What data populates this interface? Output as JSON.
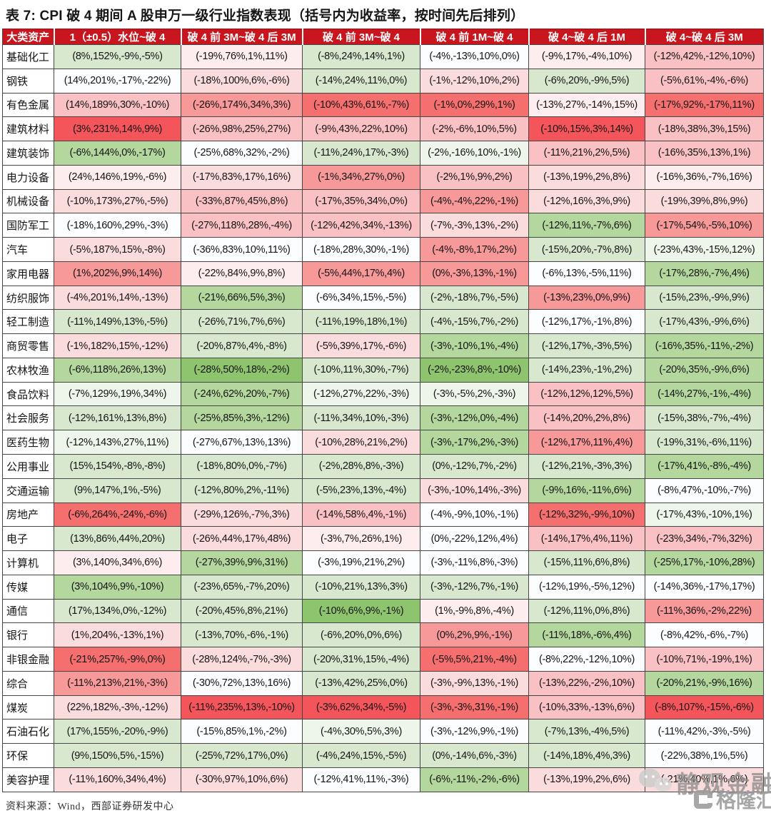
{
  "title": "表 7: CPI 破 4 期间 A 股申万一级行业指数表现（括号内为收益率，按时间先后排列）",
  "footer": {
    "source": "资料来源：Wind，西部证券研发中心"
  },
  "watermark": {
    "wechat_text": "静观金融",
    "logo_text": "格隆汇"
  },
  "palette": {
    "r4": "#f4555b",
    "r3": "#f56f6f",
    "r2": "#f79899",
    "r1": "#f9c1c3",
    "p2": "#fbdcdd",
    "p1": "#fdedee",
    "w": "#fcfdfe",
    "g0": "#eef5ea",
    "g1": "#d8e8cf",
    "g2": "#b4d79d",
    "g3": "#8fc46f",
    "header": "#c9151e"
  },
  "table": {
    "columns": [
      "大类资产",
      "1（±0.5）水位~破 4",
      "破 4 前 3M~破 4 后 3M",
      "破 4 前 3M~破 4",
      "破 4 前 1M~破 4",
      "破 4~破 4 后 1M",
      "破 4~破 4 后 3M"
    ],
    "rows": [
      {
        "name": "基础化工",
        "cells": [
          [
            "(8%,152%,-9%,-5%)",
            "g1"
          ],
          [
            "(-19%,76%,1%,11%)",
            "p1"
          ],
          [
            "(-8%,24%,14%,1%)",
            "g1"
          ],
          [
            "(-4%,-13%,10%,0%)",
            "w"
          ],
          [
            "(-9%,17%,-4%,10%)",
            "p1"
          ],
          [
            "(-12%,42%,-12%,10%)",
            "r1"
          ]
        ]
      },
      {
        "name": "钢铁",
        "cells": [
          [
            "(14%,201%,-17%,-22%)",
            "w"
          ],
          [
            "(-18%,100%,6%,-6%)",
            "p2"
          ],
          [
            "(-14%,24%,11%,0%)",
            "g1"
          ],
          [
            "(-1%,-12%,10%,2%)",
            "p2"
          ],
          [
            "(-6%,20%,-9%,5%)",
            "g1"
          ],
          [
            "(-5%,61%,-4%,-6%)",
            "r1"
          ]
        ]
      },
      {
        "name": "有色金属",
        "cells": [
          [
            "(14%,189%,30%,-10%)",
            "r1"
          ],
          [
            "(-26%,174%,34%,3%)",
            "r2"
          ],
          [
            "(-10%,43%,61%,-7%)",
            "r3"
          ],
          [
            "(-1%,0%,29%,1%)",
            "r3"
          ],
          [
            "(-13%,27%,-14%,15%)",
            "p1"
          ],
          [
            "(-17%,92%,-17%,11%)",
            "r3"
          ]
        ]
      },
      {
        "name": "建筑材料",
        "cells": [
          [
            "(3%,231%,14%,9%)",
            "r4"
          ],
          [
            "(-26%,98%,25%,27%)",
            "r1"
          ],
          [
            "(-9%,43%,22%,10%)",
            "r1"
          ],
          [
            "(-2%,-6%,10%,5%)",
            "r1"
          ],
          [
            "(-10%,15%,3%,14%)",
            "r4"
          ],
          [
            "(-18%,38%,3%,15%)",
            "r1"
          ]
        ]
      },
      {
        "name": "建筑装饰",
        "cells": [
          [
            "(-6%,144%,0%,-17%)",
            "g2"
          ],
          [
            "(-25%,68%,32%,-2%)",
            "w"
          ],
          [
            "(-11%,24%,17%,-3%)",
            "g1"
          ],
          [
            "(-2%,-16%,10%,-1%)",
            "g0"
          ],
          [
            "(-11%,21%,2%,5%)",
            "r1"
          ],
          [
            "(-16%,35%,13%,1%)",
            "r1"
          ]
        ]
      },
      {
        "name": "电力设备",
        "cells": [
          [
            "(24%,146%,19%,-6%)",
            "p1"
          ],
          [
            "(-17%,83%,17%,16%)",
            "p2"
          ],
          [
            "(-1%,34%,27%,0%)",
            "r2"
          ],
          [
            "(-2%,1%,9%,2%)",
            "r1"
          ],
          [
            "(-13%,19%,2%,8%)",
            "p2"
          ],
          [
            "(-16%,36%,-7%,16%)",
            "p1"
          ]
        ]
      },
      {
        "name": "机械设备",
        "cells": [
          [
            "(-10%,173%,27%,-5%)",
            "p2"
          ],
          [
            "(-33%,87%,45%,8%)",
            "r1"
          ],
          [
            "(-17%,35%,34%,0%)",
            "r1"
          ],
          [
            "(-4%,-4%,22%,-1%)",
            "r2"
          ],
          [
            "(-12%,16%,3%,9%)",
            "p2"
          ],
          [
            "(-19%,39%,8%,9%)",
            "p2"
          ]
        ]
      },
      {
        "name": "国防军工",
        "cells": [
          [
            "(-18%,160%,29%,-3%)",
            "w"
          ],
          [
            "(-27%,118%,28%,-4%)",
            "r1"
          ],
          [
            "(-12%,42%,34%,-13%)",
            "r1"
          ],
          [
            "(-7%,-3%,13%,-2%)",
            "p2"
          ],
          [
            "(-12%,11%,-7%,6%)",
            "g2"
          ],
          [
            "(-17%,54%,-5%,10%)",
            "r2"
          ]
        ]
      },
      {
        "name": "汽车",
        "cells": [
          [
            "(-5%,187%,15%,-8%)",
            "p2"
          ],
          [
            "(-36%,83%,10%,11%)",
            "w"
          ],
          [
            "(-18%,28%,30%,-1%)",
            "w"
          ],
          [
            "(-4%,-8%,17%,2%)",
            "r2"
          ],
          [
            "(-15%,20%,-7%,8%)",
            "g1"
          ],
          [
            "(-23%,43%,-15%,12%)",
            "g0"
          ]
        ]
      },
      {
        "name": "家用电器",
        "cells": [
          [
            "(1%,202%,9%,14%)",
            "r2"
          ],
          [
            "(-22%,84%,9%,8%)",
            "p1"
          ],
          [
            "(-5%,44%,17%,4%)",
            "r2"
          ],
          [
            "(0%,-3%,13%,-1%)",
            "r2"
          ],
          [
            "(-6%,13%,-5%,11%)",
            "w"
          ],
          [
            "(-17%,28%,-7%,4%)",
            "g2"
          ]
        ]
      },
      {
        "name": "纺织服饰",
        "cells": [
          [
            "(-4%,201%,14%,-13%)",
            "p2"
          ],
          [
            "(-21%,66%,5%,3%)",
            "g2"
          ],
          [
            "(-6%,34%,15%,-5%)",
            "w"
          ],
          [
            "(-2%,-18%,7%,-5%)",
            "g1"
          ],
          [
            "(-13%,23%,0%,9%)",
            "r2"
          ],
          [
            "(-15%,23%,-9%,9%)",
            "g1"
          ]
        ]
      },
      {
        "name": "轻工制造",
        "cells": [
          [
            "(-11%,149%,13%,-5%)",
            "g1"
          ],
          [
            "(-26%,71%,7%,6%)",
            "g1"
          ],
          [
            "(-11%,19%,18%,1%)",
            "g1"
          ],
          [
            "(-4%,-15%,7%,-2%)",
            "g1"
          ],
          [
            "(-12%,17%,-1%,8%)",
            "w"
          ],
          [
            "(-17%,43%,-9%,6%)",
            "g1"
          ]
        ]
      },
      {
        "name": "商贸零售",
        "cells": [
          [
            "(-1%,182%,15%,-12%)",
            "p2"
          ],
          [
            "(-20%,87%,4%,-8%)",
            "g1"
          ],
          [
            "(-5%,39%,17%,-6%)",
            "p2"
          ],
          [
            "(-3%,-10%,1%,-4%)",
            "g2"
          ],
          [
            "(-12%,17%,-3%,5%)",
            "g1"
          ],
          [
            "(-16%,35%,-11%,-2%)",
            "g2"
          ]
        ]
      },
      {
        "name": "农林牧渔",
        "cells": [
          [
            "(-6%,118%,26%,13%)",
            "g2"
          ],
          [
            "(-28%,50%,18%,-2%)",
            "g3"
          ],
          [
            "(-10%,11%,30%,-7%)",
            "g1"
          ],
          [
            "(-2%,-23%,8%,-10%)",
            "g3"
          ],
          [
            "(-14%,23%,-1%,2%)",
            "g1"
          ],
          [
            "(-20%,35%,-9%,6%)",
            "g2"
          ]
        ]
      },
      {
        "name": "食品饮料",
        "cells": [
          [
            "(-7%,129%,19%,34%)",
            "g0"
          ],
          [
            "(-24%,62%,20%,-7%)",
            "g2"
          ],
          [
            "(-12%,27%,22%,-3%)",
            "g0"
          ],
          [
            "(-3%,-5%,2%,-3%)",
            "g0"
          ],
          [
            "(-12%,12%,12%,5%)",
            "r1"
          ],
          [
            "(-14%,27%,-1%,-4%)",
            "g2"
          ]
        ]
      },
      {
        "name": "社会服务",
        "cells": [
          [
            "(-12%,161%,13%,8%)",
            "g1"
          ],
          [
            "(-25%,85%,3%,-12%)",
            "g2"
          ],
          [
            "(-11%,34%,10%,-3%)",
            "g1"
          ],
          [
            "(-3%,-12%,0%,-4%)",
            "g2"
          ],
          [
            "(-14%,20%,2%,8%)",
            "r1"
          ],
          [
            "(-15%,38%,-7%,-4%)",
            "g1"
          ]
        ]
      },
      {
        "name": "医药生物",
        "cells": [
          [
            "(-12%,143%,27%,11%)",
            "g0"
          ],
          [
            "(-27%,67%,13%,13%)",
            "w"
          ],
          [
            "(-10%,28%,21%,2%)",
            "p2"
          ],
          [
            "(-3%,-17%,2%,-3%)",
            "g2"
          ],
          [
            "(-12%,17%,11%,4%)",
            "r2"
          ],
          [
            "(-19%,31%,-6%,11%)",
            "g1"
          ]
        ]
      },
      {
        "name": "公用事业",
        "cells": [
          [
            "(15%,154%,-8%,-8%)",
            "g1"
          ],
          [
            "(-18%,80%,0%,-7%)",
            "g1"
          ],
          [
            "(-2%,28%,8%,-3%)",
            "g1"
          ],
          [
            "(0%,-12%,7%,-2%)",
            "g1"
          ],
          [
            "(-12%,21%,-3%,3%)",
            "g1"
          ],
          [
            "(-17%,41%,-8%,-4%)",
            "g2"
          ]
        ]
      },
      {
        "name": "交通运输",
        "cells": [
          [
            "(9%,147%,1%,-5%)",
            "g1"
          ],
          [
            "(-12%,80%,2%,-11%)",
            "g1"
          ],
          [
            "(-5%,23%,13%,-4%)",
            "g1"
          ],
          [
            "(-3%,-10%,14%,-3%)",
            "p2"
          ],
          [
            "(-9%,16%,-11%,6%)",
            "g2"
          ],
          [
            "(-8%,47%,-10%,-7%)",
            "w"
          ]
        ]
      },
      {
        "name": "房地产",
        "cells": [
          [
            "(-6%,264%,-24%,-6%)",
            "r3"
          ],
          [
            "(-29%,126%,-7%,3%)",
            "p2"
          ],
          [
            "(-14%,58%,4%,-1%)",
            "r1"
          ],
          [
            "(-4%,-9%,10%,-1%)",
            "w"
          ],
          [
            "(-12%,32%,-9%,10%)",
            "r3"
          ],
          [
            "(-17%,43%,-10%,1%)",
            "g0"
          ]
        ]
      },
      {
        "name": "电子",
        "cells": [
          [
            "(13%,86%,44%,20%)",
            "g1"
          ],
          [
            "(-26%,44%,17%,48%)",
            "p2"
          ],
          [
            "(-3%,7%,26%,1%)",
            "p1"
          ],
          [
            "(0%,-22%,12%,4%)",
            "w"
          ],
          [
            "(-14%,17%,4%,11%)",
            "r1"
          ],
          [
            "(-23%,34%,-7%,32%)",
            "r1"
          ]
        ]
      },
      {
        "name": "计算机",
        "cells": [
          [
            "(3%,140%,34%,6%)",
            "p1"
          ],
          [
            "(-27%,39%,9%,31%)",
            "g2"
          ],
          [
            "(-3%,19%,21%,2%)",
            "w"
          ],
          [
            "(-3%,-11%,8%,-3%)",
            "w"
          ],
          [
            "(-15%,11%,6%,8%)",
            "g1"
          ],
          [
            "(-25%,17%,-10%,28%)",
            "g2"
          ]
        ]
      },
      {
        "name": "传媒",
        "cells": [
          [
            "(3%,104%,9%,-10%)",
            "g2"
          ],
          [
            "(-23%,65%,-7%,20%)",
            "g1"
          ],
          [
            "(-10%,21%,13%,3%)",
            "g1"
          ],
          [
            "(-3%,-12%,7%,-1%)",
            "g1"
          ],
          [
            "(-12%,19%,-5%,12%)",
            "w"
          ],
          [
            "(-14%,36%,-17%,17%)",
            "w"
          ]
        ]
      },
      {
        "name": "通信",
        "cells": [
          [
            "(17%,134%,0%,-12%)",
            "g1"
          ],
          [
            "(-20%,45%,8%,21%)",
            "g1"
          ],
          [
            "(-10%,6%,9%,-1%)",
            "g3"
          ],
          [
            "(1%,-9%,8%,-4%)",
            "p1"
          ],
          [
            "(-12%,11%,0%,8%)",
            "g1"
          ],
          [
            "(-11%,36%,-2%,22%)",
            "r2"
          ]
        ]
      },
      {
        "name": "银行",
        "cells": [
          [
            "(1%,204%,-13%,1%)",
            "p2"
          ],
          [
            "(-13%,70%,-6%,-1%)",
            "g1"
          ],
          [
            "(-6%,20%,0%,6%)",
            "g1"
          ],
          [
            "(0%,2%,9%,-1%)",
            "r2"
          ],
          [
            "(-11%,18%,-6%,4%)",
            "g2"
          ],
          [
            "(-8%,42%,-6%,-7%)",
            "w"
          ]
        ]
      },
      {
        "name": "非银金融",
        "cells": [
          [
            "(-21%,257%,-9%,0%)",
            "r3"
          ],
          [
            "(-28%,124%,-7%,-3%)",
            "p2"
          ],
          [
            "(-20%,31%,15%,-4%)",
            "g1"
          ],
          [
            "(-5%,5%,21%,-4%)",
            "r3"
          ],
          [
            "(-8%,22%,-12%,10%)",
            "w"
          ],
          [
            "(-10%,71%,-19%,1%)",
            "r1"
          ]
        ]
      },
      {
        "name": "综合",
        "cells": [
          [
            "(-11%,213%,21%,-3%)",
            "r2"
          ],
          [
            "(-30%,72%,13%,16%)",
            "w"
          ],
          [
            "(-13%,42%,25%,0%)",
            "g1"
          ],
          [
            "(-3%,-9%,13%,-1%)",
            "p2"
          ],
          [
            "(-13%,22%,-2%,10%)",
            "r1"
          ],
          [
            "(-20%,21%,-9%,16%)",
            "g2"
          ]
        ]
      },
      {
        "name": "煤炭",
        "cells": [
          [
            "(22%,182%,-3%,-12%)",
            "p2"
          ],
          [
            "(-11%,235%,13%,-10%)",
            "r4"
          ],
          [
            "(-3%,62%,34%,-5%)",
            "r4"
          ],
          [
            "(-3%,-3%,31%,-1%)",
            "r3"
          ],
          [
            "(-10%,33%,-13%,6%)",
            "r1"
          ],
          [
            "(-8%,107%,-15%,-6%)",
            "r4"
          ]
        ]
      },
      {
        "name": "石油石化",
        "cells": [
          [
            "(17%,155%,-20%,-9%)",
            "g1"
          ],
          [
            "(-15%,85%,1%,-2%)",
            "w"
          ],
          [
            "(-4%,30%,5%,3%)",
            "g0"
          ],
          [
            "(-3%,-12%,9%,-1%)",
            "w"
          ],
          [
            "(-7%,13%,-4%,5%)",
            "g1"
          ],
          [
            "(-11%,42%,-3%,-5%)",
            "w"
          ]
        ]
      },
      {
        "name": "环保",
        "cells": [
          [
            "(9%,150%,5%,-15%)",
            "g1"
          ],
          [
            "(-25%,72%,17%,0%)",
            "g1"
          ],
          [
            "(-4%,24%,15%,-5%)",
            "g1"
          ],
          [
            "(0%,-14%,6%,-3%)",
            "g1"
          ],
          [
            "(-14%,18%,4%,3%)",
            "g1"
          ],
          [
            "(-22%,38%,1%,5%)",
            "w"
          ]
        ]
      },
      {
        "name": "美容护理",
        "cells": [
          [
            "(-11%,160%,34%,4%)",
            "p2"
          ],
          [
            "(-30%,97%,10%,6%)",
            "p2"
          ],
          [
            "(-12%,41%,11%,-3%)",
            "w"
          ],
          [
            "(-6%,-11%,-2%,-6%)",
            "g2"
          ],
          [
            "(-13%,19%,2%,6%)",
            "p2"
          ],
          [
            "(-21%,40%,1%,6%)",
            "p2"
          ]
        ]
      }
    ]
  }
}
